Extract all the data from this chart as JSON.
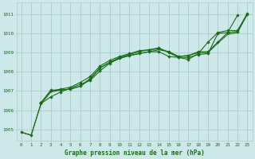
{
  "title": "Graphe pression niveau de la mer (hPa)",
  "bg_color": "#cce8e8",
  "grid_color": "#aacccc",
  "line_color": "#1a6b1a",
  "xlim": [
    -0.5,
    23.5
  ],
  "ylim": [
    1004.4,
    1011.6
  ],
  "xticks": [
    0,
    1,
    2,
    3,
    4,
    5,
    6,
    7,
    8,
    9,
    10,
    11,
    12,
    13,
    14,
    15,
    16,
    17,
    18,
    19,
    20,
    21,
    22,
    23
  ],
  "yticks": [
    1005,
    1006,
    1007,
    1008,
    1009,
    1010,
    1011
  ],
  "series": [
    {
      "x": [
        0,
        1,
        2,
        3,
        4,
        5,
        6,
        7,
        8,
        9,
        10,
        11,
        12,
        13,
        14,
        15,
        16,
        17,
        18,
        19,
        20,
        21,
        22
      ],
      "y": [
        1004.85,
        1004.7,
        1006.35,
        1006.7,
        1006.95,
        1007.15,
        1007.35,
        1007.55,
        1008.05,
        1008.45,
        1008.7,
        1008.85,
        1008.95,
        1009.05,
        1009.05,
        1008.8,
        1008.75,
        1008.75,
        1008.9,
        1008.95,
        1010.0,
        1010.05,
        1010.95
      ],
      "lw": 0.8,
      "ls": "-",
      "marker": true
    },
    {
      "x": [
        2,
        3,
        4,
        5,
        6,
        7,
        8,
        9,
        10,
        11,
        12,
        13,
        14,
        15,
        16,
        17,
        18,
        19,
        20,
        21,
        22,
        23
      ],
      "y": [
        1006.4,
        1007.0,
        1007.1,
        1007.2,
        1007.45,
        1007.75,
        1008.3,
        1008.6,
        1008.8,
        1008.95,
        1009.1,
        1009.15,
        1009.25,
        1009.0,
        1008.75,
        1008.65,
        1008.95,
        1009.55,
        1010.05,
        1010.15,
        1010.15,
        1011.05
      ],
      "lw": 0.8,
      "ls": "-",
      "marker": true
    },
    {
      "x": [
        2,
        3,
        4,
        5,
        6,
        7,
        8,
        9,
        10,
        11,
        12,
        13,
        14,
        15,
        16,
        17,
        18,
        19,
        20,
        21,
        22,
        23
      ],
      "y": [
        1006.38,
        1007.05,
        1007.05,
        1007.1,
        1007.25,
        1007.65,
        1008.2,
        1008.5,
        1008.75,
        1008.9,
        1009.05,
        1009.15,
        1009.2,
        1009.05,
        1008.8,
        1008.85,
        1009.05,
        1009.05,
        1009.55,
        1010.05,
        1010.1,
        1011.0
      ],
      "lw": 0.8,
      "ls": "-",
      "marker": true
    },
    {
      "x": [
        0,
        1,
        2,
        3,
        4,
        5,
        6,
        7,
        8,
        9,
        10,
        11,
        12,
        13,
        14,
        15,
        16,
        17,
        18,
        19,
        20,
        21,
        22,
        23
      ],
      "y": [
        1004.85,
        1004.7,
        1006.35,
        1006.95,
        1007.05,
        1007.1,
        1007.25,
        1007.6,
        1008.2,
        1008.5,
        1008.7,
        1008.85,
        1008.95,
        1009.05,
        1009.15,
        1009.05,
        1008.8,
        1008.85,
        1009.0,
        1009.0,
        1009.5,
        1009.95,
        1010.05,
        1011.0
      ],
      "lw": 0.8,
      "ls": "-",
      "marker": false
    }
  ]
}
